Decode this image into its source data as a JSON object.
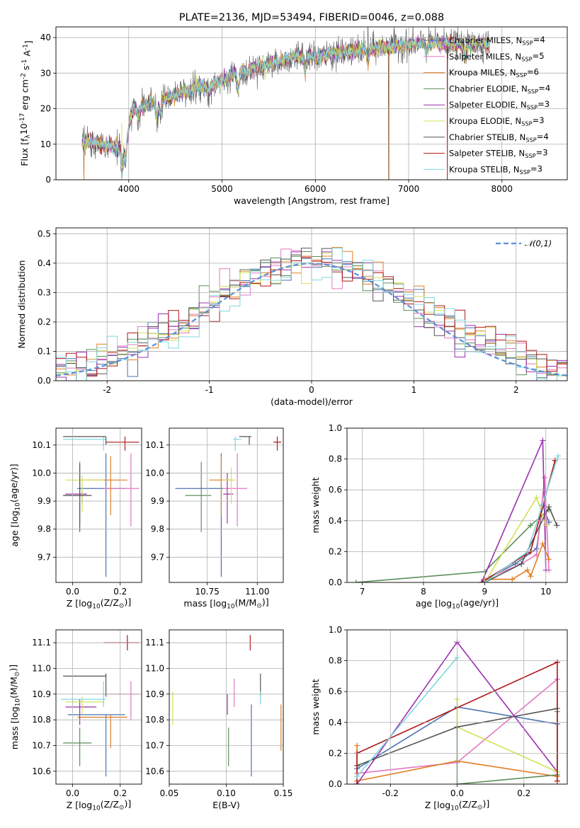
{
  "title": "PLATE=2136, MJD=53494, FIBERID=0046, z=0.088",
  "models": [
    {
      "name": "Chabrier MILES, N$_{SSP}$=4",
      "short": "Chabrier MILES",
      "nssp": 4,
      "color": "#4c72b0"
    },
    {
      "name": "Salpeter MILES, N$_{SSP}$=5",
      "short": "Salpeter MILES",
      "nssp": 5,
      "color": "#e377c2"
    },
    {
      "name": "Kroupa MILES, N$_{SSP}$=6",
      "short": "Kroupa MILES",
      "nssp": 6,
      "color": "#e37e22"
    },
    {
      "name": "Chabrier ELODIE, N$_{SSP}$=4",
      "short": "Chabrier ELODIE",
      "nssp": 4,
      "color": "#5a8f5a"
    },
    {
      "name": "Salpeter ELODIE, N$_{SSP}$=3",
      "short": "Salpeter ELODIE",
      "nssp": 3,
      "color": "#9b30b0"
    },
    {
      "name": "Kroupa ELODIE, N$_{SSP}$=3",
      "short": "Kroupa ELODIE",
      "nssp": 3,
      "color": "#d4e157"
    },
    {
      "name": "Chabrier STELIB, N$_{SSP}$=4",
      "short": "Chabrier STELIB",
      "nssp": 4,
      "color": "#555555"
    },
    {
      "name": "Salpeter STELIB, N$_{SSP}$=3",
      "short": "Salpeter STELIB",
      "nssp": 3,
      "color": "#b01515"
    },
    {
      "name": "Kroupa STELIB, N$_{SSP}$=3",
      "short": "Kroupa STELIB",
      "nssp": 3,
      "color": "#80d8e0"
    }
  ],
  "chart_data": [
    {
      "id": "spectrum",
      "type": "line",
      "title": "PLATE=2136, MJD=53494, FIBERID=0046, z=0.088",
      "xlabel": "wavelength [Angstrom, rest frame]",
      "ylabel": "Flux [f$_\\lambda$10$^{-17}$ erg cm$^{-2}$ s$^{-1}$ A$^{-1}$]",
      "xlim": [
        3220,
        8700
      ],
      "ylim": [
        0,
        43
      ],
      "xticks": [
        4000,
        5000,
        6000,
        7000,
        8000
      ],
      "yticks": [
        0,
        10,
        20,
        30,
        40
      ],
      "legend_placement": "upper right",
      "continuum": [
        [
          3500,
          11
        ],
        [
          3700,
          10
        ],
        [
          3800,
          9.5
        ],
        [
          3900,
          9
        ],
        [
          3980,
          13
        ],
        [
          4050,
          20
        ],
        [
          4200,
          21
        ],
        [
          4400,
          23
        ],
        [
          4600,
          25
        ],
        [
          4800,
          26
        ],
        [
          5000,
          27.5
        ],
        [
          5200,
          31
        ],
        [
          5400,
          32
        ],
        [
          5600,
          33
        ],
        [
          5800,
          35
        ],
        [
          6000,
          34.5
        ],
        [
          6200,
          35.5
        ],
        [
          6500,
          36.5
        ],
        [
          6800,
          37.5
        ],
        [
          7000,
          38
        ],
        [
          7200,
          38.5
        ],
        [
          7400,
          38.5
        ],
        [
          7600,
          38
        ],
        [
          7800,
          38.5
        ],
        [
          7870,
          38
        ]
      ],
      "drops": [
        {
          "x": 3520,
          "y": 0
        },
        {
          "x": 3925,
          "y": 0
        },
        {
          "x": 6785,
          "y": 0
        },
        {
          "x": 7415,
          "y": 0
        }
      ],
      "spikes": [
        {
          "x": 6565,
          "y": 43
        }
      ],
      "wavelength_range": [
        3500,
        7870
      ]
    },
    {
      "id": "residuals",
      "type": "step",
      "xlabel": "(data-model)/error",
      "ylabel": "Normed distribution",
      "xlim": [
        -2.5,
        2.5
      ],
      "ylim": [
        0,
        0.52
      ],
      "xticks": [
        -2,
        -1,
        0,
        1,
        2
      ],
      "yticks": [
        0.0,
        0.1,
        0.2,
        0.3,
        0.4,
        0.5
      ],
      "bins": 50,
      "legend_entries": [
        "$\\mathcal{N}(0,1)$"
      ],
      "legend_placement": "upper right",
      "reference_curve": {
        "name": "$\\mathcal{N}(0,1)$",
        "mean": 0,
        "sigma": 1,
        "color": "#5b8fd9",
        "style": "dashed"
      }
    },
    {
      "id": "age_vs_Z",
      "type": "errorbar",
      "xlabel": "Z [log$_{10}$(Z/Z$_\\odot$)]",
      "ylabel": "age  [log$_{10}$(age/yr)]",
      "xlim": [
        -0.07,
        0.29
      ],
      "ylim": [
        9.61,
        10.16
      ],
      "xticks": [
        0.0,
        0.2
      ],
      "yticks": [
        9.7,
        9.8,
        9.9,
        10.0,
        10.1
      ],
      "points": [
        {
          "x": 0.14,
          "y": 9.945,
          "xlo": 0.02,
          "xhi": 0.22,
          "ylo": 9.63,
          "yhi": 10.07
        },
        {
          "x": 0.245,
          "y": 9.945,
          "xlo": 0.13,
          "xhi": 0.28,
          "ylo": 9.81,
          "yhi": 10.07
        },
        {
          "x": 0.16,
          "y": 9.975,
          "xlo": 0.04,
          "xhi": 0.23,
          "ylo": 9.85,
          "yhi": 10.06
        },
        {
          "x": 0.03,
          "y": 9.92,
          "xlo": -0.04,
          "xhi": 0.05,
          "ylo": 9.82,
          "yhi": 10.04
        },
        {
          "x": 0.04,
          "y": 9.925,
          "xlo": -0.03,
          "xhi": 0.06,
          "ylo": 9.89,
          "yhi": 9.95
        },
        {
          "x": 0.04,
          "y": 9.975,
          "xlo": -0.03,
          "xhi": 0.13,
          "ylo": 9.86,
          "yhi": 9.99
        },
        {
          "x": 0.03,
          "y": 9.92,
          "xlo": -0.04,
          "xhi": 0.08,
          "ylo": 9.79,
          "yhi": 10.03
        },
        {
          "x": 0.22,
          "y": 10.11,
          "xlo": 0.14,
          "xhi": 0.28,
          "ylo": 10.08,
          "yhi": 10.13
        },
        {
          "x": 0.13,
          "y": 10.12,
          "xlo": -0.04,
          "xhi": 0.14,
          "ylo": 10.08,
          "yhi": 10.13
        }
      ],
      "extra_bars": [
        {
          "series": 6,
          "x1": -0.04,
          "x2": 0.14,
          "y": 10.13
        },
        {
          "series": 6,
          "x": 0.14,
          "y1": 10.1,
          "y2": 10.13
        }
      ]
    },
    {
      "id": "age_vs_mass",
      "type": "errorbar",
      "xlabel": "mass [log$_{10}$(M/M$_\\odot$)]",
      "ylabel": "",
      "xlim": [
        10.56,
        11.13
      ],
      "ylim": [
        9.61,
        10.16
      ],
      "xticks": [
        10.75,
        11.0
      ],
      "yticks": [
        9.7,
        9.8,
        9.9,
        10.0,
        10.1
      ],
      "points": [
        {
          "x": 10.82,
          "y": 9.945,
          "xlo": 10.59,
          "xhi": 10.83,
          "ylo": 9.63,
          "yhi": 10.07
        },
        {
          "x": 10.9,
          "y": 9.945,
          "xlo": 10.83,
          "xhi": 10.95,
          "ylo": 9.81,
          "yhi": 10.07
        },
        {
          "x": 10.82,
          "y": 9.975,
          "xlo": 10.76,
          "xhi": 10.87,
          "ylo": 9.85,
          "yhi": 10.06
        },
        {
          "x": 10.72,
          "y": 9.92,
          "xlo": 10.64,
          "xhi": 10.77,
          "ylo": 9.79,
          "yhi": 10.04
        },
        {
          "x": 10.85,
          "y": 9.925,
          "xlo": 10.83,
          "xhi": 10.88,
          "ylo": 9.82,
          "yhi": 10.0
        },
        {
          "x": 10.87,
          "y": 9.975,
          "xlo": 10.82,
          "xhi": 10.89,
          "ylo": 9.89,
          "yhi": 10.02
        },
        {
          "x": 10.96,
          "y": 10.13,
          "xlo": 10.91,
          "xhi": 10.97,
          "ylo": 10.1,
          "yhi": 10.13
        },
        {
          "x": 11.1,
          "y": 10.11,
          "xlo": 11.08,
          "xhi": 11.12,
          "ylo": 10.08,
          "yhi": 10.13
        },
        {
          "x": 10.89,
          "y": 10.12,
          "xlo": 10.88,
          "xhi": 10.92,
          "ylo": 10.08,
          "yhi": 10.13
        }
      ]
    },
    {
      "id": "mass_weight_vs_age",
      "type": "line",
      "xlabel": "age  [log$_{10}$(age/yr)]",
      "ylabel": "mass weight",
      "xlim": [
        6.75,
        10.35
      ],
      "ylim": [
        0,
        1.0
      ],
      "xticks": [
        7,
        8,
        9,
        10
      ],
      "yticks": [
        0.0,
        0.2,
        0.4,
        0.6,
        0.8,
        1.0
      ],
      "series": [
        {
          "x": [
            9.0,
            9.5,
            9.85,
            9.95,
            10.05
          ],
          "y": [
            0.02,
            0.12,
            0.22,
            0.5,
            0.39
          ]
        },
        {
          "x": [
            9.0,
            9.6,
            9.85,
            9.98,
            10.05
          ],
          "y": [
            0.02,
            0.12,
            0.18,
            0.68,
            0.08
          ]
        },
        {
          "x": [
            9.0,
            9.45,
            9.7,
            9.75,
            9.95,
            10.05
          ],
          "y": [
            0.02,
            0.02,
            0.08,
            0.04,
            0.25,
            0.15
          ]
        },
        {
          "x": [
            6.9,
            9.0,
            9.75,
            10.05
          ],
          "y": [
            0.0,
            0.07,
            0.37,
            0.47
          ]
        },
        {
          "x": [
            8.95,
            9.95,
            10.0
          ],
          "y": [
            0.0,
            0.92,
            0.08
          ]
        },
        {
          "x": [
            9.0,
            9.85,
            10.0
          ],
          "y": [
            0.0,
            0.55,
            0.37
          ]
        },
        {
          "x": [
            9.0,
            9.6,
            10.05,
            10.18
          ],
          "y": [
            0.0,
            0.12,
            0.49,
            0.37
          ]
        },
        {
          "x": [
            8.95,
            9.75,
            10.15
          ],
          "y": [
            0.0,
            0.2,
            0.79
          ]
        },
        {
          "x": [
            9.0,
            9.7,
            10.2
          ],
          "y": [
            0.0,
            0.2,
            0.82
          ]
        }
      ]
    },
    {
      "id": "mass_vs_Z",
      "type": "errorbar",
      "xlabel": "Z [log$_{10}$(Z/Z$_\\odot$)]",
      "ylabel": "mass [log$_{10}$(M/M$_\\odot$)]",
      "xlim": [
        -0.07,
        0.29
      ],
      "ylim": [
        10.55,
        11.15
      ],
      "xticks": [
        0.0,
        0.2
      ],
      "yticks": [
        10.6,
        10.7,
        10.8,
        10.9,
        11.0,
        11.1
      ],
      "points": [
        {
          "x": 0.14,
          "y": 10.82,
          "xlo": -0.02,
          "xhi": 0.22,
          "ylo": 10.58,
          "yhi": 10.82
        },
        {
          "x": 0.245,
          "y": 10.9,
          "xlo": 0.13,
          "xhi": 0.28,
          "ylo": 10.8,
          "yhi": 10.95
        },
        {
          "x": 0.16,
          "y": 10.81,
          "xlo": 0.02,
          "xhi": 0.23,
          "ylo": 10.69,
          "yhi": 10.82
        },
        {
          "x": 0.03,
          "y": 10.71,
          "xlo": -0.04,
          "xhi": 0.08,
          "ylo": 10.62,
          "yhi": 10.77
        },
        {
          "x": 0.03,
          "y": 10.85,
          "xlo": -0.03,
          "xhi": 0.1,
          "ylo": 10.78,
          "yhi": 10.88
        },
        {
          "x": 0.04,
          "y": 10.87,
          "xlo": -0.03,
          "xhi": 0.13,
          "ylo": 10.82,
          "yhi": 10.89
        },
        {
          "x": 0.14,
          "y": 10.97,
          "xlo": -0.04,
          "xhi": 0.14,
          "ylo": 10.89,
          "yhi": 10.98
        },
        {
          "x": 0.23,
          "y": 11.1,
          "xlo": 0.13,
          "xhi": 0.28,
          "ylo": 11.07,
          "yhi": 11.13
        },
        {
          "x": 0.13,
          "y": 10.88,
          "xlo": -0.05,
          "xhi": 0.14,
          "ylo": 10.85,
          "yhi": 10.95
        }
      ]
    },
    {
      "id": "mass_vs_EBV",
      "type": "errorbar",
      "xlabel": "E(B-V)",
      "ylabel": "",
      "xlim": [
        0.05,
        0.15
      ],
      "ylim": [
        10.55,
        11.15
      ],
      "xticks": [
        0.05,
        0.1,
        0.15
      ],
      "yticks": [
        10.6,
        10.7,
        10.8,
        10.9,
        11.0,
        11.1
      ],
      "points": [
        {
          "x": 0.122,
          "y": 10.82,
          "ylo": 10.58,
          "yhi": 10.86
        },
        {
          "x": 0.107,
          "y": 10.9,
          "ylo": 10.85,
          "yhi": 10.96
        },
        {
          "x": 0.148,
          "y": 10.81,
          "ylo": 10.68,
          "yhi": 10.86
        },
        {
          "x": 0.102,
          "y": 10.71,
          "ylo": 10.62,
          "yhi": 10.77
        },
        {
          "x": 0.101,
          "y": 10.86,
          "ylo": 10.82,
          "yhi": 10.9
        },
        {
          "x": 0.053,
          "y": 10.86,
          "ylo": 10.78,
          "yhi": 10.91
        },
        {
          "x": 0.13,
          "y": 10.97,
          "ylo": 10.89,
          "yhi": 10.98
        },
        {
          "x": 0.121,
          "y": 11.1,
          "ylo": 11.07,
          "yhi": 11.13
        },
        {
          "x": 0.13,
          "y": 10.88,
          "ylo": 10.86,
          "yhi": 10.91
        }
      ]
    },
    {
      "id": "mass_weight_vs_Z",
      "type": "line",
      "xlabel": "Z [log$_{10}$(Z/Z$_\\odot$)]",
      "ylabel": "mass weight",
      "xlim": [
        -0.33,
        0.33
      ],
      "ylim": [
        0,
        1.0
      ],
      "xticks": [
        -0.2,
        0.0,
        0.2
      ],
      "yticks": [
        0.0,
        0.2,
        0.4,
        0.6,
        0.8,
        1.0
      ],
      "series": [
        {
          "x": [
            -0.3,
            0.0,
            0.3
          ],
          "y": [
            0.1,
            0.5,
            0.39
          ]
        },
        {
          "x": [
            -0.3,
            0.0,
            0.3,
            0.3
          ],
          "y": [
            0.07,
            0.14,
            0.68,
            0.08
          ]
        },
        {
          "x": [
            -0.3,
            -0.3,
            0.0,
            0.3
          ],
          "y": [
            0.25,
            0.02,
            0.15,
            0.05
          ]
        },
        {
          "x": [
            0.0,
            0.0,
            0.3,
            0.3
          ],
          "y": [
            0.37,
            0.0,
            0.06,
            0.47
          ]
        },
        {
          "x": [
            -0.3,
            0.0,
            0.3
          ],
          "y": [
            0.0,
            0.92,
            0.08
          ]
        },
        {
          "x": [
            0.0,
            0.0,
            0.3
          ],
          "y": [
            0.55,
            0.37,
            0.08
          ]
        },
        {
          "x": [
            -0.3,
            0.0,
            0.3
          ],
          "y": [
            0.12,
            0.37,
            0.49
          ]
        },
        {
          "x": [
            -0.3,
            -0.3,
            0.3,
            0.3
          ],
          "y": [
            0.0,
            0.2,
            0.79,
            0.02
          ]
        },
        {
          "x": [
            -0.3,
            0.0
          ],
          "y": [
            0.05,
            0.82
          ]
        }
      ]
    }
  ]
}
